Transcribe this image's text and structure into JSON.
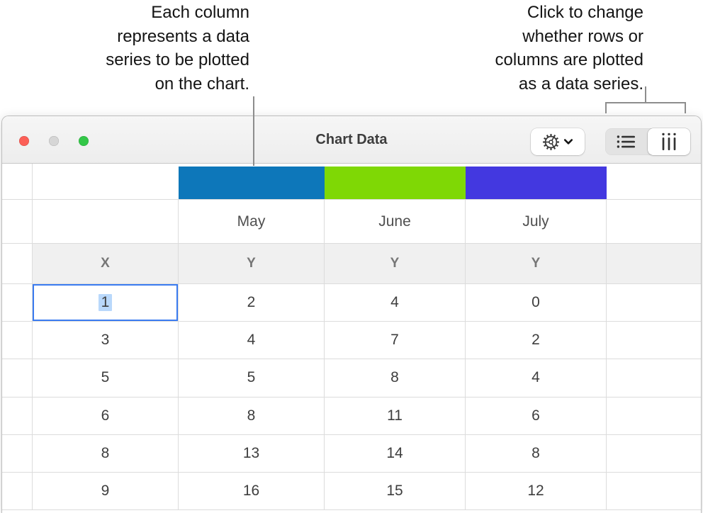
{
  "callouts": {
    "left": {
      "lines": [
        "Each column",
        "represents a data",
        "series to be plotted",
        "on the chart."
      ]
    },
    "right": {
      "lines": [
        "Click to change",
        "whether rows or",
        "columns are plotted",
        "as a data series."
      ]
    }
  },
  "window": {
    "title": "Chart Data"
  },
  "titlebar": {
    "traffic_lights": [
      "close",
      "minimize",
      "zoom"
    ],
    "gear_button_icons": [
      "gear-icon",
      "chevron-down-icon"
    ],
    "segmented_control": {
      "options": [
        {
          "name": "plot-rows",
          "icon": "rows-icon",
          "selected": false
        },
        {
          "name": "plot-columns",
          "icon": "columns-icon",
          "selected": true
        }
      ]
    }
  },
  "table": {
    "series_colors": [
      "#0D77BA",
      "#7FD805",
      "#4338E0"
    ],
    "month_headers": [
      "May",
      "June",
      "July"
    ],
    "axis_headers": [
      "X",
      "Y",
      "Y",
      "Y"
    ],
    "rows": [
      [
        "1",
        "2",
        "4",
        "0"
      ],
      [
        "3",
        "4",
        "7",
        "2"
      ],
      [
        "5",
        "5",
        "8",
        "4"
      ],
      [
        "6",
        "8",
        "11",
        "6"
      ],
      [
        "8",
        "13",
        "14",
        "8"
      ],
      [
        "9",
        "16",
        "15",
        "12"
      ]
    ],
    "selected_cell": {
      "row": 0,
      "col": 0
    }
  }
}
